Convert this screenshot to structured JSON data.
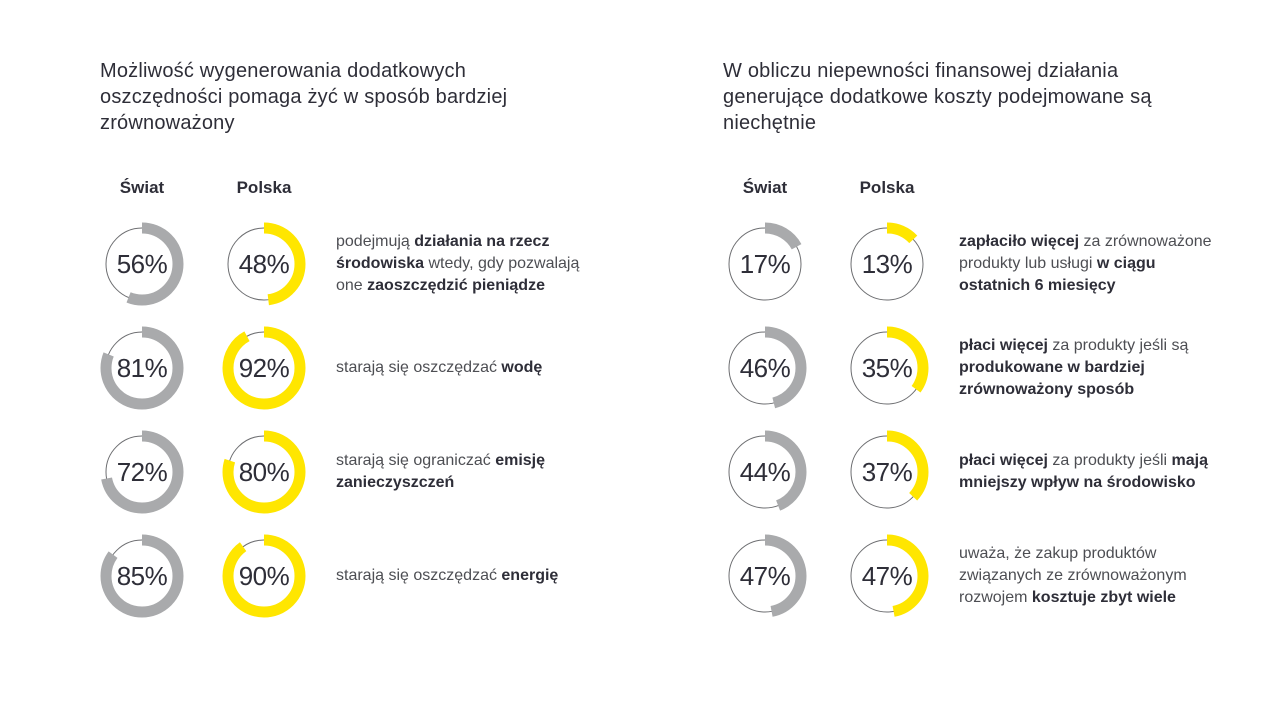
{
  "colors": {
    "background": "#ffffff",
    "world_arc": "#a9aaac",
    "poland_arc": "#ffe600",
    "ring_track": "#6d6e71",
    "heading_text": "#2e2e38",
    "body_text": "#4d4e53",
    "body_bold_text": "#2e2e38"
  },
  "chart_data": [
    {
      "type": "donut",
      "title": "Możliwość wygenerowania dodatkowych oszczędności pomaga żyć w sposób bardziej zrównoważony",
      "columns": [
        "Świat",
        "Polska"
      ],
      "legend_position": "top",
      "value_range": [
        0,
        100
      ],
      "rows": [
        {
          "world": 56,
          "poland": 48,
          "world_label": "56%",
          "poland_label": "48%",
          "description_segments": [
            {
              "text": "podejmują ",
              "bold": false
            },
            {
              "text": "działania na rzecz\nśrodowiska",
              "bold": true
            },
            {
              "text": " wtedy, gdy pozwalają\none ",
              "bold": false
            },
            {
              "text": "zaoszczędzić pieniądze",
              "bold": true
            }
          ]
        },
        {
          "world": 81,
          "poland": 92,
          "world_label": "81%",
          "poland_label": "92%",
          "description_segments": [
            {
              "text": "starają się oszczędzać ",
              "bold": false
            },
            {
              "text": "wodę",
              "bold": true
            }
          ]
        },
        {
          "world": 72,
          "poland": 80,
          "world_label": "72%",
          "poland_label": "80%",
          "description_segments": [
            {
              "text": "starają się ograniczać ",
              "bold": false
            },
            {
              "text": "emisję\nzanieczyszczeń",
              "bold": true
            }
          ]
        },
        {
          "world": 85,
          "poland": 90,
          "world_label": "85%",
          "poland_label": "90%",
          "description_segments": [
            {
              "text": "starają się oszczędzać ",
              "bold": false
            },
            {
              "text": "energię",
              "bold": true
            }
          ]
        }
      ]
    },
    {
      "type": "donut",
      "title": "W obliczu niepewności finansowej działania generujące dodatkowe koszty podejmowane są niechętnie",
      "columns": [
        "Świat",
        "Polska"
      ],
      "legend_position": "top",
      "value_range": [
        0,
        100
      ],
      "rows": [
        {
          "world": 17,
          "poland": 13,
          "world_label": "17%",
          "poland_label": "13%",
          "description_segments": [
            {
              "text": "zapłaciło więcej",
              "bold": true
            },
            {
              "text": " za zrównoważone\nprodukty lub usługi ",
              "bold": false
            },
            {
              "text": "w ciągu\nostatnich 6 miesięcy",
              "bold": true
            }
          ]
        },
        {
          "world": 46,
          "poland": 35,
          "world_label": "46%",
          "poland_label": "35%",
          "description_segments": [
            {
              "text": "płaci więcej",
              "bold": true
            },
            {
              "text": " za produkty jeśli są\n",
              "bold": false
            },
            {
              "text": "produkowane w bardziej\nzrównoważony sposób",
              "bold": true
            }
          ]
        },
        {
          "world": 44,
          "poland": 37,
          "world_label": "44%",
          "poland_label": "37%",
          "description_segments": [
            {
              "text": "płaci więcej",
              "bold": true
            },
            {
              "text": " za produkty jeśli ",
              "bold": false
            },
            {
              "text": "mają\nmniejszy wpływ na środowisko",
              "bold": true
            }
          ]
        },
        {
          "world": 47,
          "poland": 47,
          "world_label": "47%",
          "poland_label": "47%",
          "description_segments": [
            {
              "text": "uważa, że zakup produktów\nzwiązanych ze zrównoważonym\nrozwojem ",
              "bold": false
            },
            {
              "text": "kosztuje zbyt wiele",
              "bold": true
            }
          ]
        }
      ]
    }
  ]
}
